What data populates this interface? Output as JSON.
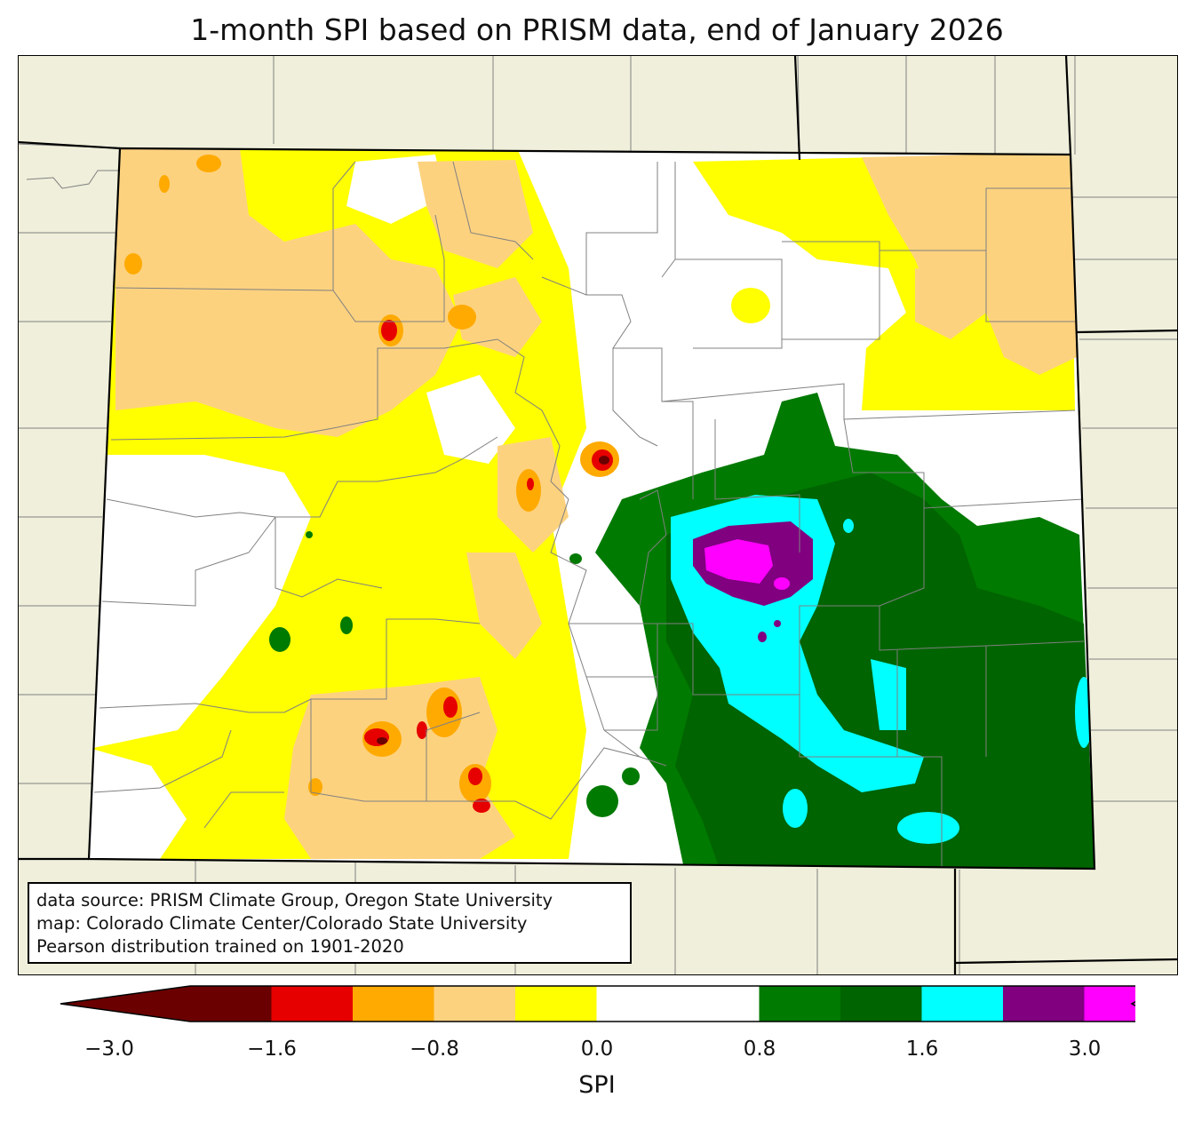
{
  "title": "1-month SPI based on PRISM data, end of January 2026",
  "source_lines": [
    "data source: PRISM Climate Group, Oregon State University",
    "map: Colorado Climate Center/Colorado State University",
    "Pearson distribution trained on 1901-2020"
  ],
  "colorbar": {
    "label": "SPI",
    "ticks": [
      "−3.0",
      "−1.6",
      "−0.8",
      "0.0",
      "0.8",
      "1.6",
      "3.0"
    ],
    "colors": [
      "#6b0000",
      "#e60000",
      "#ffaa00",
      "#fdd27f",
      "#ffff00",
      "#ffffff",
      "#ffffff",
      "#007a00",
      "#006400",
      "#00ffff",
      "#800080",
      "#ff00ff"
    ]
  },
  "colors": {
    "land_outside": "#efefdb",
    "state_line": "#000000",
    "county_line": "#808080"
  }
}
